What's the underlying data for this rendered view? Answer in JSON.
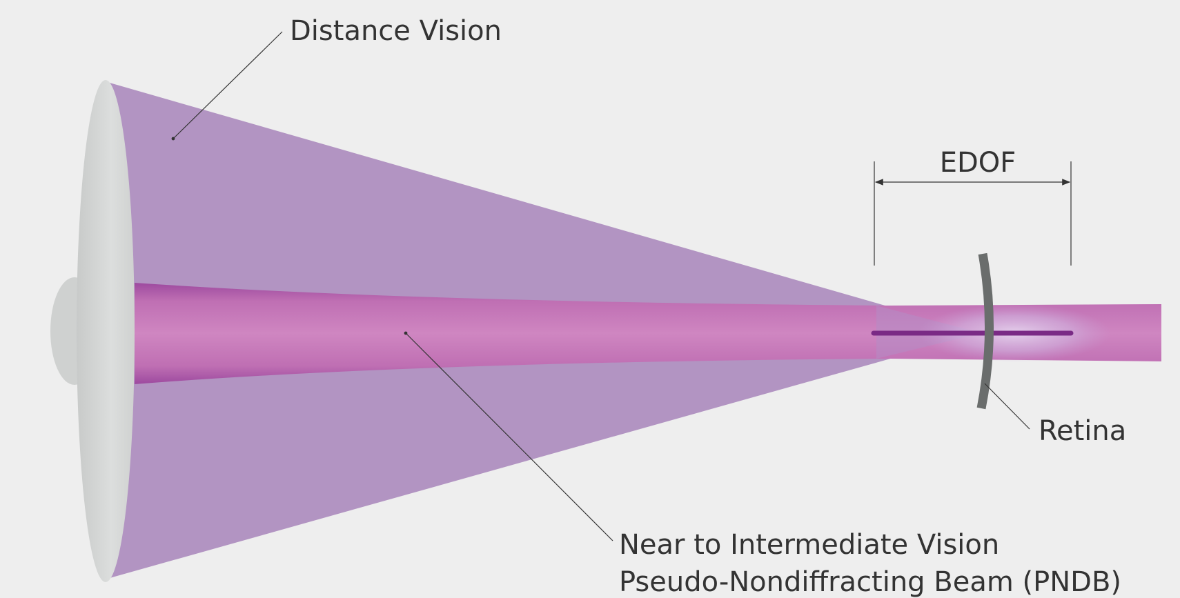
{
  "labels": {
    "distance_vision": "Distance Vision",
    "edof": "EDOF",
    "retina": "Retina",
    "near_intermediate": "Near to Intermediate Vision",
    "pndb": "Pseudo-Nondiffracting Beam (PNDB)"
  },
  "colors": {
    "background": "#eeeeee",
    "distance_cone": "#a580b8",
    "pndb_beam": "#c97cbc",
    "pndb_edge": "#a04fa2",
    "focus_line": "#7a2a85",
    "retina": "#6a6d6c",
    "lens": "#d9dbda",
    "leader_line": "#333333"
  }
}
